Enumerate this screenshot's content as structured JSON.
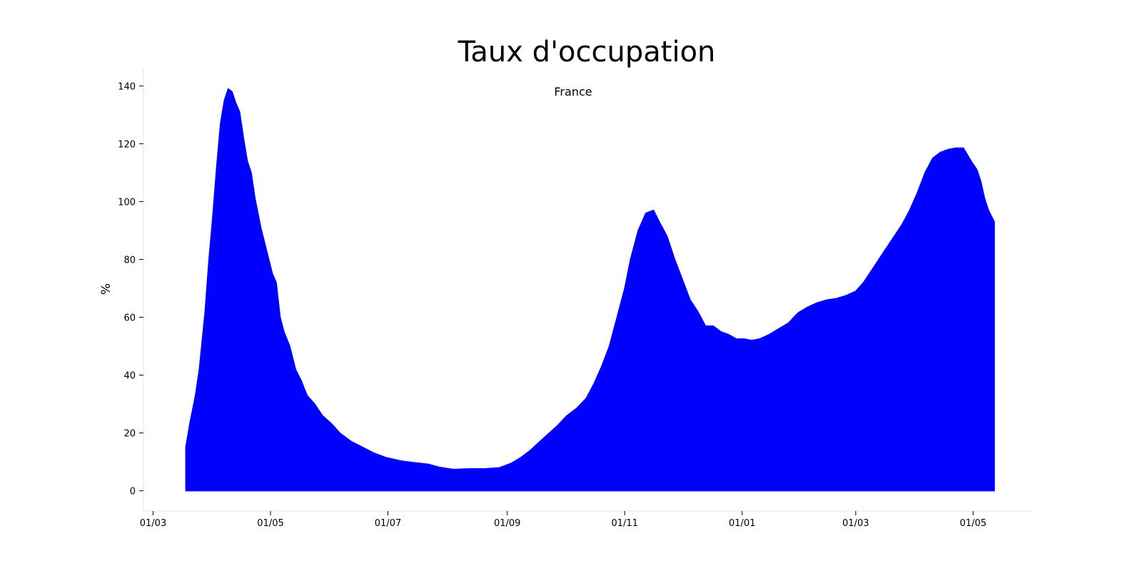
{
  "chart_data": {
    "type": "area",
    "title": "Taux d'occupation",
    "subtitle": "France",
    "xlabel": "",
    "ylabel": "%",
    "ylim": [
      -7,
      146
    ],
    "yticks": [
      0,
      20,
      40,
      60,
      80,
      100,
      120,
      140
    ],
    "xlim": [
      "2020-02-25",
      "2021-06-01"
    ],
    "xticks": [
      {
        "date": "2020-03-01",
        "label": "01/03"
      },
      {
        "date": "2020-05-01",
        "label": "01/05"
      },
      {
        "date": "2020-07-01",
        "label": "01/07"
      },
      {
        "date": "2020-09-01",
        "label": "01/09"
      },
      {
        "date": "2020-11-01",
        "label": "01/11"
      },
      {
        "date": "2021-01-01",
        "label": "01/01"
      },
      {
        "date": "2021-03-01",
        "label": "01/03"
      },
      {
        "date": "2021-05-01",
        "label": "01/05"
      }
    ],
    "grid": false,
    "color": "#0000ff",
    "series": [
      {
        "name": "",
        "points": [
          [
            "2020-03-18",
            15
          ],
          [
            "2020-03-20",
            23
          ],
          [
            "2020-03-23",
            33
          ],
          [
            "2020-03-25",
            42
          ],
          [
            "2020-03-28",
            62
          ],
          [
            "2020-03-30",
            80
          ],
          [
            "2020-04-01",
            95
          ],
          [
            "2020-04-03",
            112
          ],
          [
            "2020-04-05",
            127
          ],
          [
            "2020-04-07",
            135
          ],
          [
            "2020-04-09",
            139
          ],
          [
            "2020-04-11",
            138
          ],
          [
            "2020-04-13",
            134
          ],
          [
            "2020-04-15",
            131
          ],
          [
            "2020-04-17",
            122
          ],
          [
            "2020-04-19",
            114
          ],
          [
            "2020-04-21",
            110
          ],
          [
            "2020-04-23",
            101
          ],
          [
            "2020-04-26",
            91
          ],
          [
            "2020-04-29",
            83
          ],
          [
            "2020-05-02",
            75
          ],
          [
            "2020-05-04",
            72
          ],
          [
            "2020-05-06",
            60
          ],
          [
            "2020-05-08",
            55
          ],
          [
            "2020-05-11",
            50
          ],
          [
            "2020-05-14",
            42
          ],
          [
            "2020-05-17",
            38
          ],
          [
            "2020-05-20",
            33
          ],
          [
            "2020-05-24",
            30
          ],
          [
            "2020-05-28",
            26
          ],
          [
            "2020-06-02",
            23
          ],
          [
            "2020-06-06",
            20
          ],
          [
            "2020-06-12",
            17
          ],
          [
            "2020-06-18",
            15
          ],
          [
            "2020-06-24",
            13
          ],
          [
            "2020-06-30",
            11.5
          ],
          [
            "2020-07-08",
            10.3
          ],
          [
            "2020-07-15",
            9.7
          ],
          [
            "2020-07-22",
            9.2
          ],
          [
            "2020-07-28",
            8.1
          ],
          [
            "2020-08-04",
            7.4
          ],
          [
            "2020-08-12",
            7.6
          ],
          [
            "2020-08-20",
            7.6
          ],
          [
            "2020-08-28",
            8.0
          ],
          [
            "2020-09-03",
            9.5
          ],
          [
            "2020-09-08",
            11.5
          ],
          [
            "2020-09-13",
            14
          ],
          [
            "2020-09-17",
            16.5
          ],
          [
            "2020-09-22",
            19.5
          ],
          [
            "2020-09-27",
            22.5
          ],
          [
            "2020-10-02",
            26
          ],
          [
            "2020-10-07",
            28.5
          ],
          [
            "2020-10-12",
            32
          ],
          [
            "2020-10-16",
            37
          ],
          [
            "2020-10-20",
            43
          ],
          [
            "2020-10-24",
            50
          ],
          [
            "2020-10-28",
            60
          ],
          [
            "2020-11-01",
            70
          ],
          [
            "2020-11-04",
            80
          ],
          [
            "2020-11-08",
            90
          ],
          [
            "2020-11-12",
            96
          ],
          [
            "2020-11-16",
            97
          ],
          [
            "2020-11-19",
            93
          ],
          [
            "2020-11-23",
            88
          ],
          [
            "2020-11-27",
            80
          ],
          [
            "2020-12-01",
            73
          ],
          [
            "2020-12-05",
            66
          ],
          [
            "2020-12-09",
            62
          ],
          [
            "2020-12-13",
            57
          ],
          [
            "2020-12-17",
            57
          ],
          [
            "2020-12-21",
            55
          ],
          [
            "2020-12-25",
            54
          ],
          [
            "2020-12-29",
            52.5
          ],
          [
            "2021-01-02",
            52.5
          ],
          [
            "2021-01-06",
            52
          ],
          [
            "2021-01-10",
            52.5
          ],
          [
            "2021-01-15",
            54
          ],
          [
            "2021-01-20",
            56
          ],
          [
            "2021-01-25",
            58
          ],
          [
            "2021-01-30",
            61.5
          ],
          [
            "2021-02-04",
            63.5
          ],
          [
            "2021-02-09",
            65
          ],
          [
            "2021-02-14",
            66
          ],
          [
            "2021-02-19",
            66.5
          ],
          [
            "2021-02-24",
            67.5
          ],
          [
            "2021-03-01",
            69
          ],
          [
            "2021-03-05",
            72
          ],
          [
            "2021-03-09",
            76
          ],
          [
            "2021-03-13",
            80
          ],
          [
            "2021-03-17",
            84
          ],
          [
            "2021-03-21",
            88
          ],
          [
            "2021-03-25",
            92
          ],
          [
            "2021-03-29",
            97
          ],
          [
            "2021-04-02",
            103
          ],
          [
            "2021-04-06",
            110
          ],
          [
            "2021-04-10",
            115
          ],
          [
            "2021-04-14",
            117
          ],
          [
            "2021-04-18",
            118
          ],
          [
            "2021-04-22",
            118.5
          ],
          [
            "2021-04-26",
            118.5
          ],
          [
            "2021-04-30",
            114
          ],
          [
            "2021-05-03",
            111
          ],
          [
            "2021-05-05",
            107
          ],
          [
            "2021-05-07",
            101
          ],
          [
            "2021-05-09",
            97
          ],
          [
            "2021-05-12",
            93
          ]
        ]
      }
    ]
  }
}
